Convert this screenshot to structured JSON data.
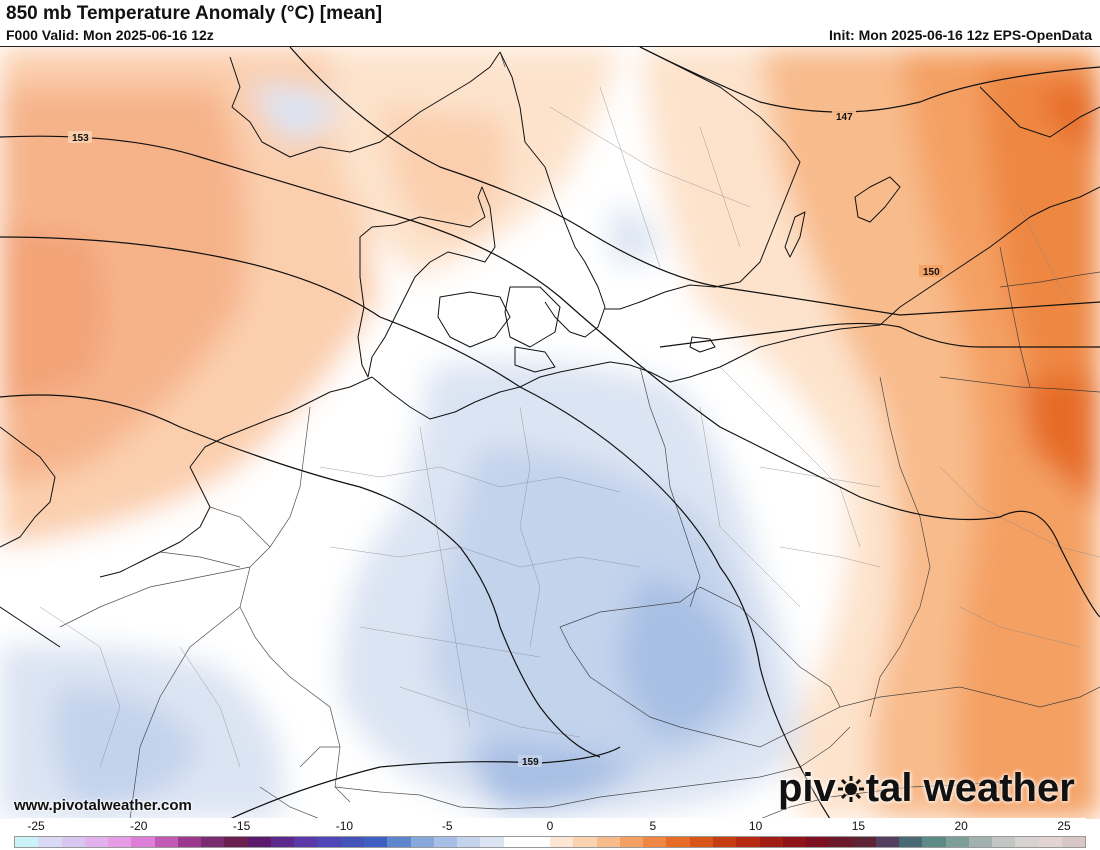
{
  "header": {
    "title": "850 mb Temperature Anomaly (°C) [mean]",
    "valid": "F000 Valid: Mon 2025-06-16 12z",
    "init": "Init: Mon 2025-06-16 12z EPS-OpenData"
  },
  "map": {
    "contour_labels": [
      "147",
      "150",
      "153",
      "159"
    ]
  },
  "watermark": {
    "url": "www.pivotalweather.com",
    "logo_part1": "piv",
    "logo_part2": "tal weather"
  },
  "colorbar": {
    "tick_labels": [
      "-25",
      "-20",
      "-15",
      "-10",
      "-5",
      "0",
      "5",
      "10",
      "15",
      "20",
      "25"
    ],
    "colors": [
      "#cbf2f7",
      "#d7d9f5",
      "#d9c6f0",
      "#e3b2ee",
      "#e79ce6",
      "#dd7ed8",
      "#c25bb4",
      "#9b3a8c",
      "#7a2a6e",
      "#6a2050",
      "#5c1a6c",
      "#5b2a8c",
      "#5b3aa8",
      "#4f46b8",
      "#4353b8",
      "#3f5fc2",
      "#5e86cf",
      "#88a7da",
      "#a7bfe4",
      "#c3d3ec",
      "#dbe4f3",
      "#ffffff",
      "#ffffff",
      "#fde7d4",
      "#fbd2b0",
      "#f8bb8b",
      "#f4a064",
      "#ee8743",
      "#e66c28",
      "#d85419",
      "#c73d12",
      "#b62a12",
      "#a11e16",
      "#8e1419",
      "#7c1020",
      "#6b1a2c",
      "#5c2434",
      "#534060",
      "#496a72",
      "#5c8a86",
      "#7e9e98",
      "#a3b2ae",
      "#c2c7c6",
      "#d8d3d1",
      "#e3d4d4",
      "#d8c7c7"
    ]
  }
}
